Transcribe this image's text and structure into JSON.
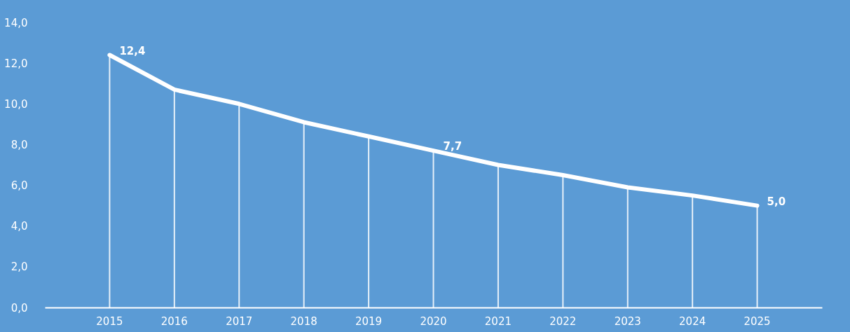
{
  "chart_data": {
    "type": "line",
    "categories": [
      "2015",
      "2016",
      "2017",
      "2018",
      "2019",
      "2020",
      "2021",
      "2022",
      "2023",
      "2024",
      "2025"
    ],
    "series": [
      {
        "type": "bar",
        "color": "#ffffff",
        "values": [
          12.4,
          10.7,
          10.0,
          9.1,
          8.4,
          7.7,
          7.0,
          6.5,
          5.9,
          5.5,
          5.0
        ]
      },
      {
        "color": "#ffffff",
        "values": [
          12.4,
          10.7,
          10.0,
          9.1,
          8.4,
          7.7,
          7.0,
          6.5,
          5.9,
          5.5,
          5.0
        ],
        "value_labels": [
          "12,4",
          null,
          null,
          null,
          null,
          "7,7",
          null,
          null,
          null,
          null,
          "5,0"
        ]
      }
    ],
    "ylim": [
      0,
      14
    ],
    "yticks": [
      {
        "value": 0,
        "label": "0,0"
      },
      {
        "value": 2,
        "label": "2,0"
      },
      {
        "value": 4,
        "label": "4,0"
      },
      {
        "value": 6,
        "label": "6,0"
      },
      {
        "value": 8,
        "label": "8,0"
      },
      {
        "value": 10,
        "label": "10,0"
      },
      {
        "value": 12,
        "label": "12,0"
      },
      {
        "value": 14,
        "label": "14,0"
      }
    ],
    "grid": false,
    "marker": "none",
    "line_style": "solid"
  }
}
